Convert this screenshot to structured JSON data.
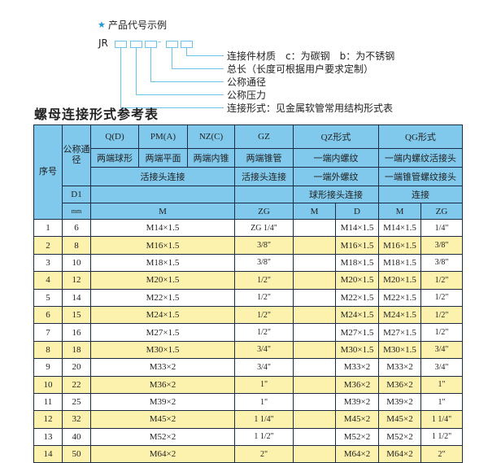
{
  "diagram": {
    "star_icon": "star-icon",
    "heading": "产品代号示例",
    "code_prefix": "JR",
    "code_separator": "-",
    "labels": [
      "连接件材质　c：为碳钢　b：为不锈钢",
      "总长（长度可根据用户要求定制）",
      "公称通径",
      "公称压力",
      "连接形式：见金属软管常用结构形式表"
    ]
  },
  "title": "螺母连接形式参考表",
  "colors": {
    "header_bg": "#80c9ec",
    "alt_row_bg": "#fcf2ad",
    "border": "#1c2b44",
    "accent": "#6cc3e8"
  },
  "header": {
    "seq": "序号",
    "nominal_dia": "公称通径",
    "row_a": [
      "Q(D)",
      "PM(A)",
      "NZ(C)",
      "GZ",
      "QZ形式",
      "QG形式"
    ],
    "row_b": [
      "两端球形",
      "两端平面",
      "两端内锥",
      "两端锥管",
      "一端内螺纹",
      "一端内螺纹活接头"
    ],
    "row_c": [
      "活接头连接",
      "活接头连接",
      "一端外螺纹",
      "一端锥管螺纹接头"
    ],
    "row_d": [
      "D1",
      "",
      "",
      "球形接头连接",
      "连接"
    ],
    "row_e": [
      "mm",
      "M",
      "ZG",
      "M",
      "D",
      "M",
      "ZG"
    ]
  },
  "rows": [
    {
      "no": "1",
      "d1": "6",
      "m": "M14×1.5",
      "zg": "ZG 1/4\"",
      "qz_m": "",
      "qz_d": "M14×1.5",
      "qg_m": "M14×1.5",
      "qg_zg": "1/4\""
    },
    {
      "no": "2",
      "d1": "8",
      "m": "M16×1.5",
      "zg": "3/8\"",
      "qz_m": "",
      "qz_d": "M16×1.5",
      "qg_m": "M16×1.5",
      "qg_zg": "3/8\""
    },
    {
      "no": "3",
      "d1": "10",
      "m": "M18×1.5",
      "zg": "3/8\"",
      "qz_m": "",
      "qz_d": "M18×1.5",
      "qg_m": "M18×1.5",
      "qg_zg": "3/8\""
    },
    {
      "no": "4",
      "d1": "12",
      "m": "M20×1.5",
      "zg": "1/2\"",
      "qz_m": "",
      "qz_d": "M20×1.5",
      "qg_m": "M20×1.5",
      "qg_zg": "1/2\""
    },
    {
      "no": "5",
      "d1": "14",
      "m": "M22×1.5",
      "zg": "1/2\"",
      "qz_m": "",
      "qz_d": "M22×1.5",
      "qg_m": "M22×1.5",
      "qg_zg": "1/2\""
    },
    {
      "no": "6",
      "d1": "15",
      "m": "M24×1.5",
      "zg": "1/2\"",
      "qz_m": "",
      "qz_d": "M24×1.5",
      "qg_m": "M24×1.5",
      "qg_zg": "1/2\""
    },
    {
      "no": "7",
      "d1": "16",
      "m": "M27×1.5",
      "zg": "1/2\"",
      "qz_m": "",
      "qz_d": "M27×1.5",
      "qg_m": "M27×1.5",
      "qg_zg": "1/2\""
    },
    {
      "no": "8",
      "d1": "18",
      "m": "M30×1.5",
      "zg": "3/4\"",
      "qz_m": "",
      "qz_d": "M30×1.5",
      "qg_m": "M30×1.5",
      "qg_zg": "3/4\""
    },
    {
      "no": "9",
      "d1": "20",
      "m": "M33×2",
      "zg": "3/4\"",
      "qz_m": "",
      "qz_d": "M33×2",
      "qg_m": "M33×2",
      "qg_zg": "3/4\""
    },
    {
      "no": "10",
      "d1": "22",
      "m": "M36×2",
      "zg": "1\"",
      "qz_m": "",
      "qz_d": "M36×2",
      "qg_m": "M36×2",
      "qg_zg": "1\""
    },
    {
      "no": "11",
      "d1": "25",
      "m": "M39×2",
      "zg": "1\"",
      "qz_m": "",
      "qz_d": "M39×2",
      "qg_m": "M39×2",
      "qg_zg": "1\""
    },
    {
      "no": "12",
      "d1": "32",
      "m": "M45×2",
      "zg": "1 1/4\"",
      "qz_m": "",
      "qz_d": "M45×2",
      "qg_m": "M45×2",
      "qg_zg": "1 1/4\""
    },
    {
      "no": "13",
      "d1": "40",
      "m": "M52×2",
      "zg": "1 1/2\"",
      "qz_m": "",
      "qz_d": "M52×2",
      "qg_m": "M52×2",
      "qg_zg": "1 1/2\""
    },
    {
      "no": "14",
      "d1": "50",
      "m": "M64×2",
      "zg": "2\"",
      "qz_m": "",
      "qz_d": "M64×2",
      "qg_m": "M64×2",
      "qg_zg": "2\""
    }
  ]
}
